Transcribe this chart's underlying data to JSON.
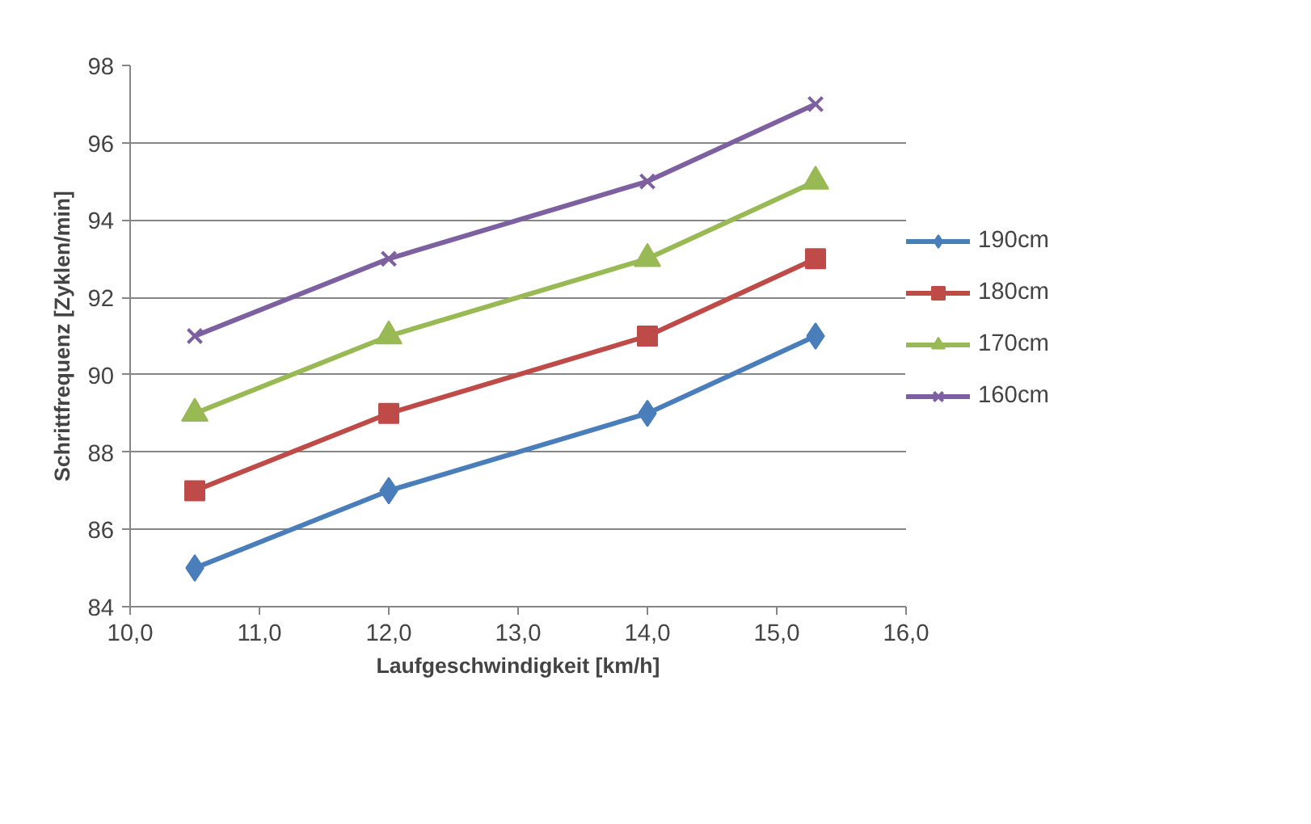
{
  "chart_data": {
    "type": "line",
    "xlabel": "Laufgeschwindigkeit [km/h]",
    "ylabel": "Schrittfrequenz [Zyklen/min]",
    "x": [
      10.5,
      12.0,
      14.0,
      15.3
    ],
    "series": [
      {
        "name": "190cm",
        "color": "#4a7ebb",
        "marker": "diamond",
        "values": [
          85,
          87,
          89,
          91
        ]
      },
      {
        "name": "180cm",
        "color": "#be4b48",
        "marker": "square",
        "values": [
          87,
          89,
          91,
          93
        ]
      },
      {
        "name": "170cm",
        "color": "#98b954",
        "marker": "triangle",
        "values": [
          89,
          91,
          93,
          95
        ]
      },
      {
        "name": "160cm",
        "color": "#7d60a0",
        "marker": "cross",
        "values": [
          91,
          93,
          95,
          97
        ]
      }
    ],
    "xlim": [
      10,
      16
    ],
    "ylim": [
      84,
      98
    ],
    "xticks": [
      {
        "value": 10,
        "label": "10,0"
      },
      {
        "value": 11,
        "label": "11,0"
      },
      {
        "value": 12,
        "label": "12,0"
      },
      {
        "value": 13,
        "label": "13,0"
      },
      {
        "value": 14,
        "label": "14,0"
      },
      {
        "value": 15,
        "label": "15,0"
      },
      {
        "value": 16,
        "label": "16,0"
      }
    ],
    "yticks": [
      84,
      86,
      88,
      90,
      92,
      94,
      96,
      98
    ],
    "grid": "y",
    "legend": "right",
    "line_style": "solid"
  }
}
